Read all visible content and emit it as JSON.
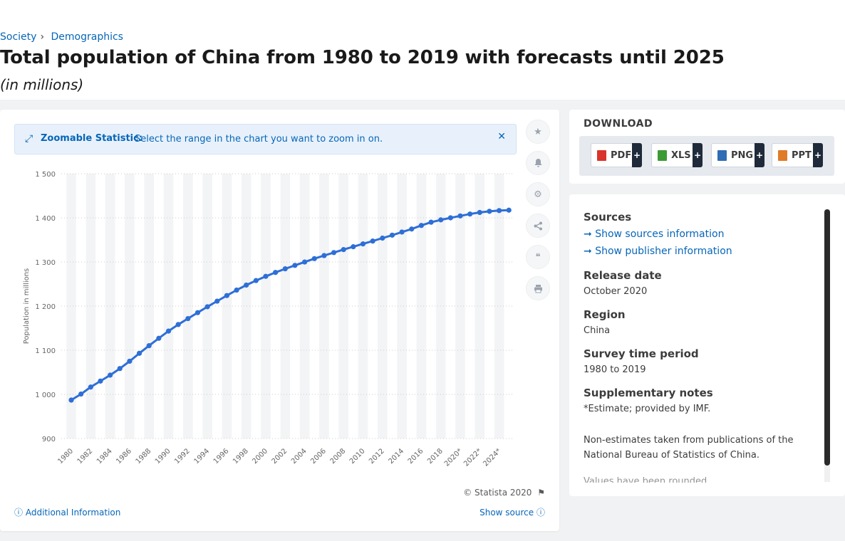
{
  "breadcrumb": {
    "items": [
      "Society",
      "Demographics"
    ],
    "separator": "›"
  },
  "page": {
    "title": "Total population of China from 1980 to 2019 with forecasts until 2025",
    "subtitle": "(in millions)"
  },
  "zoom_banner": {
    "strong": "Zoomable Statistic:",
    "text": "Select the range in the chart you want to zoom in on.",
    "icon": "expand-icon",
    "close_icon": "close-icon"
  },
  "side_icons": [
    "star-icon",
    "bell-icon",
    "gear-icon",
    "share-icon",
    "quote-icon",
    "print-icon"
  ],
  "footer": {
    "copyright": "© Statista 2020",
    "additional_info": "Additional Information",
    "show_source": "Show source"
  },
  "download": {
    "title": "DOWNLOAD",
    "buttons": [
      {
        "label": "PDF",
        "icon": "pdf-icon",
        "color": "#d9332b"
      },
      {
        "label": "XLS",
        "icon": "xls-icon",
        "color": "#3d9b35"
      },
      {
        "label": "PNG",
        "icon": "png-icon",
        "color": "#2f6db5"
      },
      {
        "label": "PPT",
        "icon": "ppt-icon",
        "color": "#e07b26"
      }
    ],
    "plus": "+"
  },
  "info": {
    "sources_heading": "Sources",
    "show_sources": "Show sources information",
    "show_publisher": "Show publisher information",
    "release_heading": "Release date",
    "release_value": "October 2020",
    "region_heading": "Region",
    "region_value": "China",
    "survey_heading": "Survey time period",
    "survey_value": "1980 to 2019",
    "supp_heading": "Supplementary notes",
    "supp_note1": "*Estimate; provided by IMF.",
    "supp_note2": "Non-estimates taken from publications of the National Bureau of Statistics of China.",
    "supp_note3": "Values have been rounded."
  },
  "colors": {
    "accent": "#0666b8",
    "line": "#2e6fd6",
    "band": "#f3f4f6",
    "grid": "#cccccc"
  },
  "chart_data": {
    "type": "line",
    "title": "Total population of China from 1980 to 2019 with forecasts until 2025",
    "ylabel": "Population in millions",
    "xlabel": "",
    "ylim": [
      900,
      1500
    ],
    "yticks": [
      900,
      1000,
      1100,
      1200,
      1300,
      1400,
      1500
    ],
    "ytick_labels": [
      "900",
      "1 000",
      "1 100",
      "1 200",
      "1 300",
      "1 400",
      "1 500"
    ],
    "x": [
      "1980",
      "1981",
      "1982",
      "1983",
      "1984",
      "1985",
      "1986",
      "1987",
      "1988",
      "1989",
      "1990",
      "1991",
      "1992",
      "1993",
      "1994",
      "1995",
      "1996",
      "1997",
      "1998",
      "1999",
      "2000",
      "2001",
      "2002",
      "2003",
      "2004",
      "2005",
      "2006",
      "2007",
      "2008",
      "2009",
      "2010",
      "2011",
      "2012",
      "2013",
      "2014",
      "2015",
      "2016",
      "2017",
      "2018",
      "2019",
      "2020*",
      "2021*",
      "2022*",
      "2023*",
      "2024*",
      "2025*"
    ],
    "xtick_labels": [
      "1980",
      "1982",
      "1984",
      "1986",
      "1988",
      "1990",
      "1992",
      "1994",
      "1996",
      "1998",
      "2000",
      "2002",
      "2004",
      "2006",
      "2008",
      "2010",
      "2012",
      "2014",
      "2016",
      "2018",
      "2020*",
      "2022*",
      "2024*"
    ],
    "grid": true,
    "series": [
      {
        "values": [
          987.05,
          1000.72,
          1016.54,
          1030.08,
          1043.57,
          1058.51,
          1075.07,
          1093.0,
          1110.26,
          1127.04,
          1143.33,
          1158.23,
          1171.71,
          1185.17,
          1198.5,
          1211.21,
          1223.89,
          1236.26,
          1247.61,
          1257.86,
          1267.43,
          1276.27,
          1284.53,
          1292.27,
          1299.88,
          1307.56,
          1314.48,
          1321.29,
          1328.02,
          1334.5,
          1340.91,
          1347.35,
          1354.04,
          1360.72,
          1367.82,
          1374.62,
          1382.71,
          1390.08,
          1395.38,
          1400.05,
          1404.33,
          1408.57,
          1412.22,
          1414.75,
          1416.42,
          1417.34
        ]
      }
    ]
  }
}
